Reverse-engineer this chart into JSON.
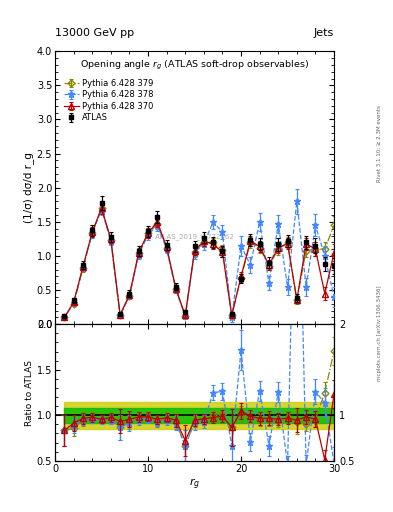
{
  "title_top": "13000 GeV pp",
  "title_right": "Jets",
  "plot_title": "Opening angle r_{g} (ATLAS soft-drop observables)",
  "xlabel": "r_{g}",
  "ylabel_main": "(1/σ) dσ/d r_g",
  "ylabel_ratio": "Ratio to ATLAS",
  "watermark": "ATLAS_2019_I1772062",
  "x": [
    1,
    2,
    3,
    4,
    5,
    6,
    7,
    8,
    9,
    10,
    11,
    12,
    13,
    14,
    15,
    16,
    17,
    18,
    19,
    20,
    21,
    22,
    23,
    24,
    25,
    26,
    27,
    28,
    29,
    30
  ],
  "atlas_y": [
    0.12,
    0.35,
    0.87,
    1.38,
    1.78,
    1.28,
    0.15,
    0.45,
    1.07,
    1.36,
    1.57,
    1.16,
    0.55,
    0.18,
    1.14,
    1.27,
    1.2,
    1.07,
    0.15,
    0.67,
    1.23,
    1.18,
    0.9,
    1.17,
    1.22,
    0.38,
    1.2,
    1.15,
    0.88,
    0.85
  ],
  "atlas_err": [
    0.02,
    0.04,
    0.06,
    0.08,
    0.1,
    0.07,
    0.03,
    0.05,
    0.07,
    0.08,
    0.09,
    0.07,
    0.05,
    0.03,
    0.08,
    0.08,
    0.08,
    0.08,
    0.03,
    0.07,
    0.09,
    0.09,
    0.08,
    0.09,
    0.09,
    0.06,
    0.1,
    0.11,
    0.1,
    0.12
  ],
  "py370_y": [
    0.1,
    0.32,
    0.84,
    1.35,
    1.7,
    1.25,
    0.14,
    0.43,
    1.05,
    1.34,
    1.5,
    1.13,
    0.52,
    0.13,
    1.08,
    1.22,
    1.17,
    1.06,
    0.13,
    0.7,
    1.22,
    1.14,
    0.87,
    1.12,
    1.18,
    0.36,
    1.18,
    1.1,
    0.45,
    1.05
  ],
  "py370_err": [
    0.02,
    0.03,
    0.05,
    0.07,
    0.08,
    0.06,
    0.02,
    0.04,
    0.06,
    0.07,
    0.08,
    0.06,
    0.04,
    0.03,
    0.07,
    0.07,
    0.07,
    0.07,
    0.03,
    0.06,
    0.08,
    0.08,
    0.07,
    0.08,
    0.08,
    0.05,
    0.09,
    0.1,
    0.09,
    0.13
  ],
  "py378_y": [
    0.1,
    0.31,
    0.83,
    1.33,
    1.68,
    1.22,
    0.13,
    0.41,
    1.02,
    1.31,
    1.45,
    1.1,
    0.5,
    0.12,
    1.05,
    1.18,
    1.5,
    1.35,
    0.1,
    1.15,
    0.87,
    1.5,
    0.6,
    1.47,
    0.55,
    1.8,
    0.55,
    1.45,
    1.0,
    0.4
  ],
  "py378_err": [
    0.02,
    0.03,
    0.05,
    0.07,
    0.08,
    0.06,
    0.02,
    0.04,
    0.06,
    0.07,
    0.08,
    0.06,
    0.04,
    0.03,
    0.09,
    0.09,
    0.1,
    0.1,
    0.06,
    0.15,
    0.12,
    0.13,
    0.1,
    0.13,
    0.12,
    0.18,
    0.13,
    0.16,
    0.14,
    0.15
  ],
  "py379_y": [
    0.1,
    0.3,
    0.82,
    1.34,
    1.7,
    1.24,
    0.13,
    0.42,
    1.04,
    1.33,
    1.47,
    1.12,
    0.51,
    0.12,
    1.06,
    1.2,
    1.2,
    1.09,
    0.13,
    0.68,
    1.2,
    1.12,
    0.86,
    1.1,
    1.2,
    0.35,
    1.08,
    1.1,
    1.1,
    1.45
  ],
  "py379_err": [
    0.02,
    0.03,
    0.05,
    0.07,
    0.08,
    0.06,
    0.02,
    0.04,
    0.06,
    0.07,
    0.08,
    0.06,
    0.04,
    0.03,
    0.07,
    0.07,
    0.07,
    0.07,
    0.03,
    0.06,
    0.08,
    0.08,
    0.07,
    0.08,
    0.08,
    0.05,
    0.09,
    0.1,
    0.1,
    0.13
  ],
  "atlas_band_green": 0.08,
  "atlas_band_yellow": 0.15,
  "color_atlas": "#000000",
  "color_py370": "#bb0000",
  "color_py378": "#4488ff",
  "color_py379": "#888800",
  "band_color_green": "#00bb00",
  "band_color_yellow": "#cccc00",
  "ylim_main": [
    0,
    4
  ],
  "ylim_ratio": [
    0.5,
    2.0
  ],
  "xlim": [
    0,
    30
  ],
  "yticks_main": [
    0,
    0.5,
    1.0,
    1.5,
    2.0,
    2.5,
    3.0,
    3.5,
    4.0
  ],
  "yticks_ratio": [
    0.5,
    1.0,
    1.5,
    2.0
  ],
  "xticks": [
    0,
    10,
    20,
    30
  ],
  "rivet_label": "Rivet 3.1.10; ≥ 2.3M events",
  "inspire_label": "mcplots.cern.ch [arXiv:1306.3436]"
}
